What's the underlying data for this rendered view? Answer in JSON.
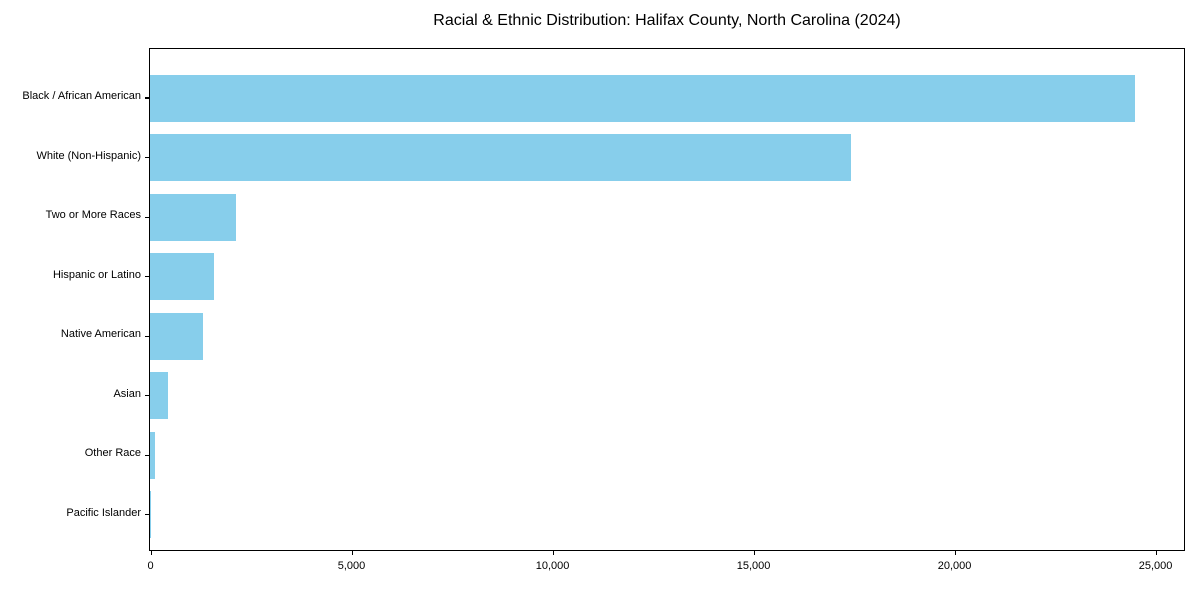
{
  "title": "Racial & Ethnic Distribution: Halifax County, North Carolina (2024)",
  "chart_data": {
    "type": "bar",
    "orientation": "horizontal",
    "title": "Racial & Ethnic Distribution: Halifax County, North Carolina (2024)",
    "categories": [
      "Black / African American",
      "White (Non-Hispanic)",
      "Two or More Races",
      "Hispanic or Latino",
      "Native American",
      "Asian",
      "Other Race",
      "Pacific Islander"
    ],
    "values": [
      24500,
      17430,
      2130,
      1590,
      1310,
      450,
      120,
      15
    ],
    "bar_color": "#87CEEB",
    "xlabel": "",
    "ylabel": "",
    "xlim": [
      0,
      25694
    ],
    "x_ticks": [
      0,
      5000,
      10000,
      15000,
      20000,
      25000
    ],
    "x_tick_labels": [
      "0",
      "5,000",
      "10,000",
      "15,000",
      "20,000",
      "25,000"
    ],
    "grid": false,
    "legend": null,
    "frame": "full-box",
    "text_color": "#000000",
    "background_color": "#ffffff"
  }
}
